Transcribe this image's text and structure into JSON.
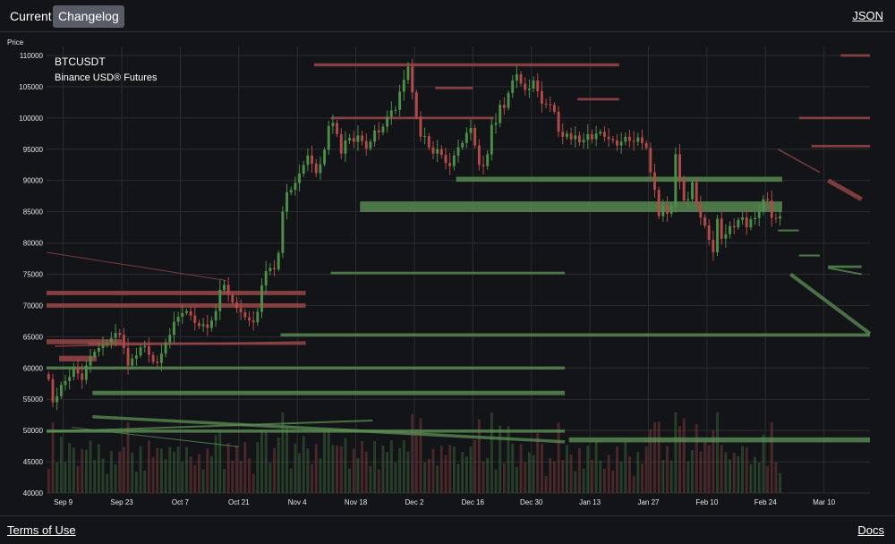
{
  "header": {
    "tabs": [
      {
        "label": "Current",
        "active": false
      },
      {
        "label": "Changelog",
        "active": true
      }
    ],
    "json_label": "JSON"
  },
  "footer": {
    "terms_label": "Terms of Use",
    "docs_label": "Docs"
  },
  "colors": {
    "background": "#131417",
    "grid": "#2a2c31",
    "up": "#4d8f48",
    "down": "#b34a4a",
    "zone_green": "#5d8f55",
    "zone_red": "#a04a4a"
  },
  "chart_data": {
    "type": "candlestick",
    "title": "BTCUSDT",
    "subtitle": "Binance USD® Futures",
    "ylabel": "Price",
    "ylim": [
      40000,
      110000
    ],
    "y_ticks": [
      40000,
      45000,
      50000,
      55000,
      60000,
      65000,
      70000,
      75000,
      80000,
      85000,
      90000,
      95000,
      100000,
      105000,
      110000
    ],
    "x_range": [
      0,
      197
    ],
    "x_ticks": [
      {
        "label": "Sep 9",
        "day": 4
      },
      {
        "label": "Sep 23",
        "day": 18
      },
      {
        "label": "Oct 7",
        "day": 32
      },
      {
        "label": "Oct 21",
        "day": 46
      },
      {
        "label": "Nov 4",
        "day": 60
      },
      {
        "label": "Nov 18",
        "day": 74
      },
      {
        "label": "Dec 2",
        "day": 88
      },
      {
        "label": "Dec 16",
        "day": 102
      },
      {
        "label": "Dec 30",
        "day": 116
      },
      {
        "label": "Jan 13",
        "day": 130
      },
      {
        "label": "Jan 27",
        "day": 144
      },
      {
        "label": "Feb 10",
        "day": 158
      },
      {
        "label": "Feb 24",
        "day": 172
      },
      {
        "label": "Mar 10",
        "day": 186
      }
    ],
    "closes": [
      58200,
      54500,
      55500,
      57300,
      57900,
      58600,
      60200,
      59100,
      58100,
      60400,
      61800,
      62600,
      63200,
      63700,
      64000,
      64800,
      65600,
      65300,
      63200,
      60400,
      61500,
      62000,
      63300,
      63500,
      62100,
      61000,
      60800,
      62300,
      64100,
      65300,
      67400,
      68200,
      68800,
      69100,
      68400,
      67200,
      66700,
      67000,
      66400,
      67600,
      69100,
      72500,
      73300,
      71700,
      70500,
      69600,
      68900,
      68100,
      67600,
      67300,
      69000,
      73200,
      75500,
      76000,
      75800,
      78400,
      85000,
      88100,
      88500,
      89600,
      91100,
      92500,
      94000,
      92700,
      91200,
      92600,
      94900,
      98700,
      99200,
      97400,
      94300,
      96400,
      96800,
      96200,
      97200,
      96300,
      95100,
      96200,
      98000,
      97700,
      98600,
      100200,
      101200,
      101300,
      104200,
      106100,
      108200,
      104100,
      100200,
      97000,
      97100,
      95300,
      94300,
      95000,
      94100,
      92800,
      92300,
      94000,
      95300,
      96000,
      97600,
      98400,
      95600,
      92500,
      92300,
      94200,
      98900,
      99200,
      102100,
      101600,
      104000,
      106000,
      107000,
      105500,
      104500,
      104700,
      106000,
      104300,
      102300,
      102200,
      102100,
      101000,
      97800,
      97000,
      97500,
      96600,
      97200,
      96100,
      96500,
      97400,
      96600,
      97500,
      97800,
      97000,
      96600,
      96400,
      95600,
      96200,
      97000,
      96300,
      96200,
      96900,
      96000,
      95200,
      91300,
      88500,
      84300,
      86000,
      84700,
      85900,
      94200,
      90000,
      86800,
      87000,
      89700,
      86200,
      84100,
      82800,
      80500,
      78500,
      83900,
      80700,
      81400,
      82700,
      82500,
      83700,
      84100,
      82500,
      83800,
      84000,
      85000,
      87000,
      86800,
      84000,
      83900,
      84300
    ],
    "zones": [
      {
        "color": "red",
        "x0": 64,
        "x1": 137,
        "p": 108500,
        "thickness": 500
      },
      {
        "color": "red",
        "x0": 190,
        "x1": 197,
        "p": 110000,
        "thickness": 400
      },
      {
        "color": "red",
        "x0": 68,
        "x1": 107,
        "p": 100000,
        "thickness": 400
      },
      {
        "color": "red",
        "x0": 180,
        "x1": 197,
        "p": 100000,
        "thickness": 400
      },
      {
        "color": "red",
        "x0": 93,
        "x1": 102,
        "p": 104800,
        "thickness": 400
      },
      {
        "color": "red",
        "x0": 127,
        "x1": 137,
        "p": 103000,
        "thickness": 400
      },
      {
        "color": "red",
        "x0": 183,
        "x1": 197,
        "p": 95500,
        "thickness": 400
      },
      {
        "color": "red",
        "x0": 0,
        "x1": 62,
        "p": 72000,
        "thickness": 700
      },
      {
        "color": "red",
        "x0": 0,
        "x1": 62,
        "p": 70000,
        "thickness": 700
      },
      {
        "color": "red",
        "x0": 0,
        "x1": 18,
        "p": 64200,
        "thickness": 800
      },
      {
        "color": "red",
        "x0": 10,
        "x1": 62,
        "p": 63900,
        "thickness": 400
      },
      {
        "color": "red",
        "x0": 3,
        "x1": 12,
        "p": 61500,
        "thickness": 900
      },
      {
        "color": "green",
        "x0": 98,
        "x1": 176,
        "p": 90200,
        "thickness": 800
      },
      {
        "color": "green",
        "x0": 75,
        "x1": 176,
        "p": 85800,
        "thickness": 1700
      },
      {
        "color": "green",
        "x0": 68,
        "x1": 124,
        "p": 75200,
        "thickness": 400
      },
      {
        "color": "green",
        "x0": 56,
        "x1": 197,
        "p": 65300,
        "thickness": 500
      },
      {
        "color": "green",
        "x0": 0,
        "x1": 124,
        "p": 60000,
        "thickness": 500
      },
      {
        "color": "green",
        "x0": 11,
        "x1": 124,
        "p": 56000,
        "thickness": 700
      },
      {
        "color": "green",
        "x0": 0,
        "x1": 124,
        "p": 49900,
        "thickness": 500
      },
      {
        "color": "green",
        "x0": 125,
        "x1": 197,
        "p": 48500,
        "thickness": 800
      },
      {
        "color": "green",
        "x0": 187,
        "x1": 195,
        "p": 76200,
        "thickness": 400
      },
      {
        "color": "green",
        "x0": 175,
        "x1": 180,
        "p": 82000,
        "thickness": 300
      },
      {
        "color": "green",
        "x0": 180,
        "x1": 185,
        "p": 78000,
        "thickness": 300
      }
    ],
    "trendlines": [
      {
        "color": "red",
        "x0": 175,
        "p0": 95000,
        "x1": 185,
        "p1": 91300,
        "width": 1.5
      },
      {
        "color": "red",
        "x0": 187,
        "p0": 90000,
        "x1": 195,
        "p1": 87000,
        "width": 5
      },
      {
        "color": "red",
        "x0": 0,
        "p0": 78500,
        "x1": 43,
        "p1": 74000,
        "width": 1
      },
      {
        "color": "red",
        "x0": 2,
        "p0": 63500,
        "x1": 62,
        "p1": 64200,
        "width": 1.5
      },
      {
        "color": "green",
        "x0": 178,
        "p0": 75000,
        "x1": 197,
        "p1": 65500,
        "width": 4
      },
      {
        "color": "green",
        "x0": 11,
        "p0": 52200,
        "x1": 124,
        "p1": 48200,
        "width": 3.5
      },
      {
        "color": "green",
        "x0": 0,
        "p0": 49800,
        "x1": 78,
        "p1": 51600,
        "width": 2
      },
      {
        "color": "green",
        "x0": 6,
        "p0": 50500,
        "x1": 46,
        "p1": 47400,
        "width": 1
      },
      {
        "color": "green",
        "x0": 187,
        "p0": 76000,
        "x1": 195,
        "p1": 75000,
        "width": 2
      }
    ]
  }
}
